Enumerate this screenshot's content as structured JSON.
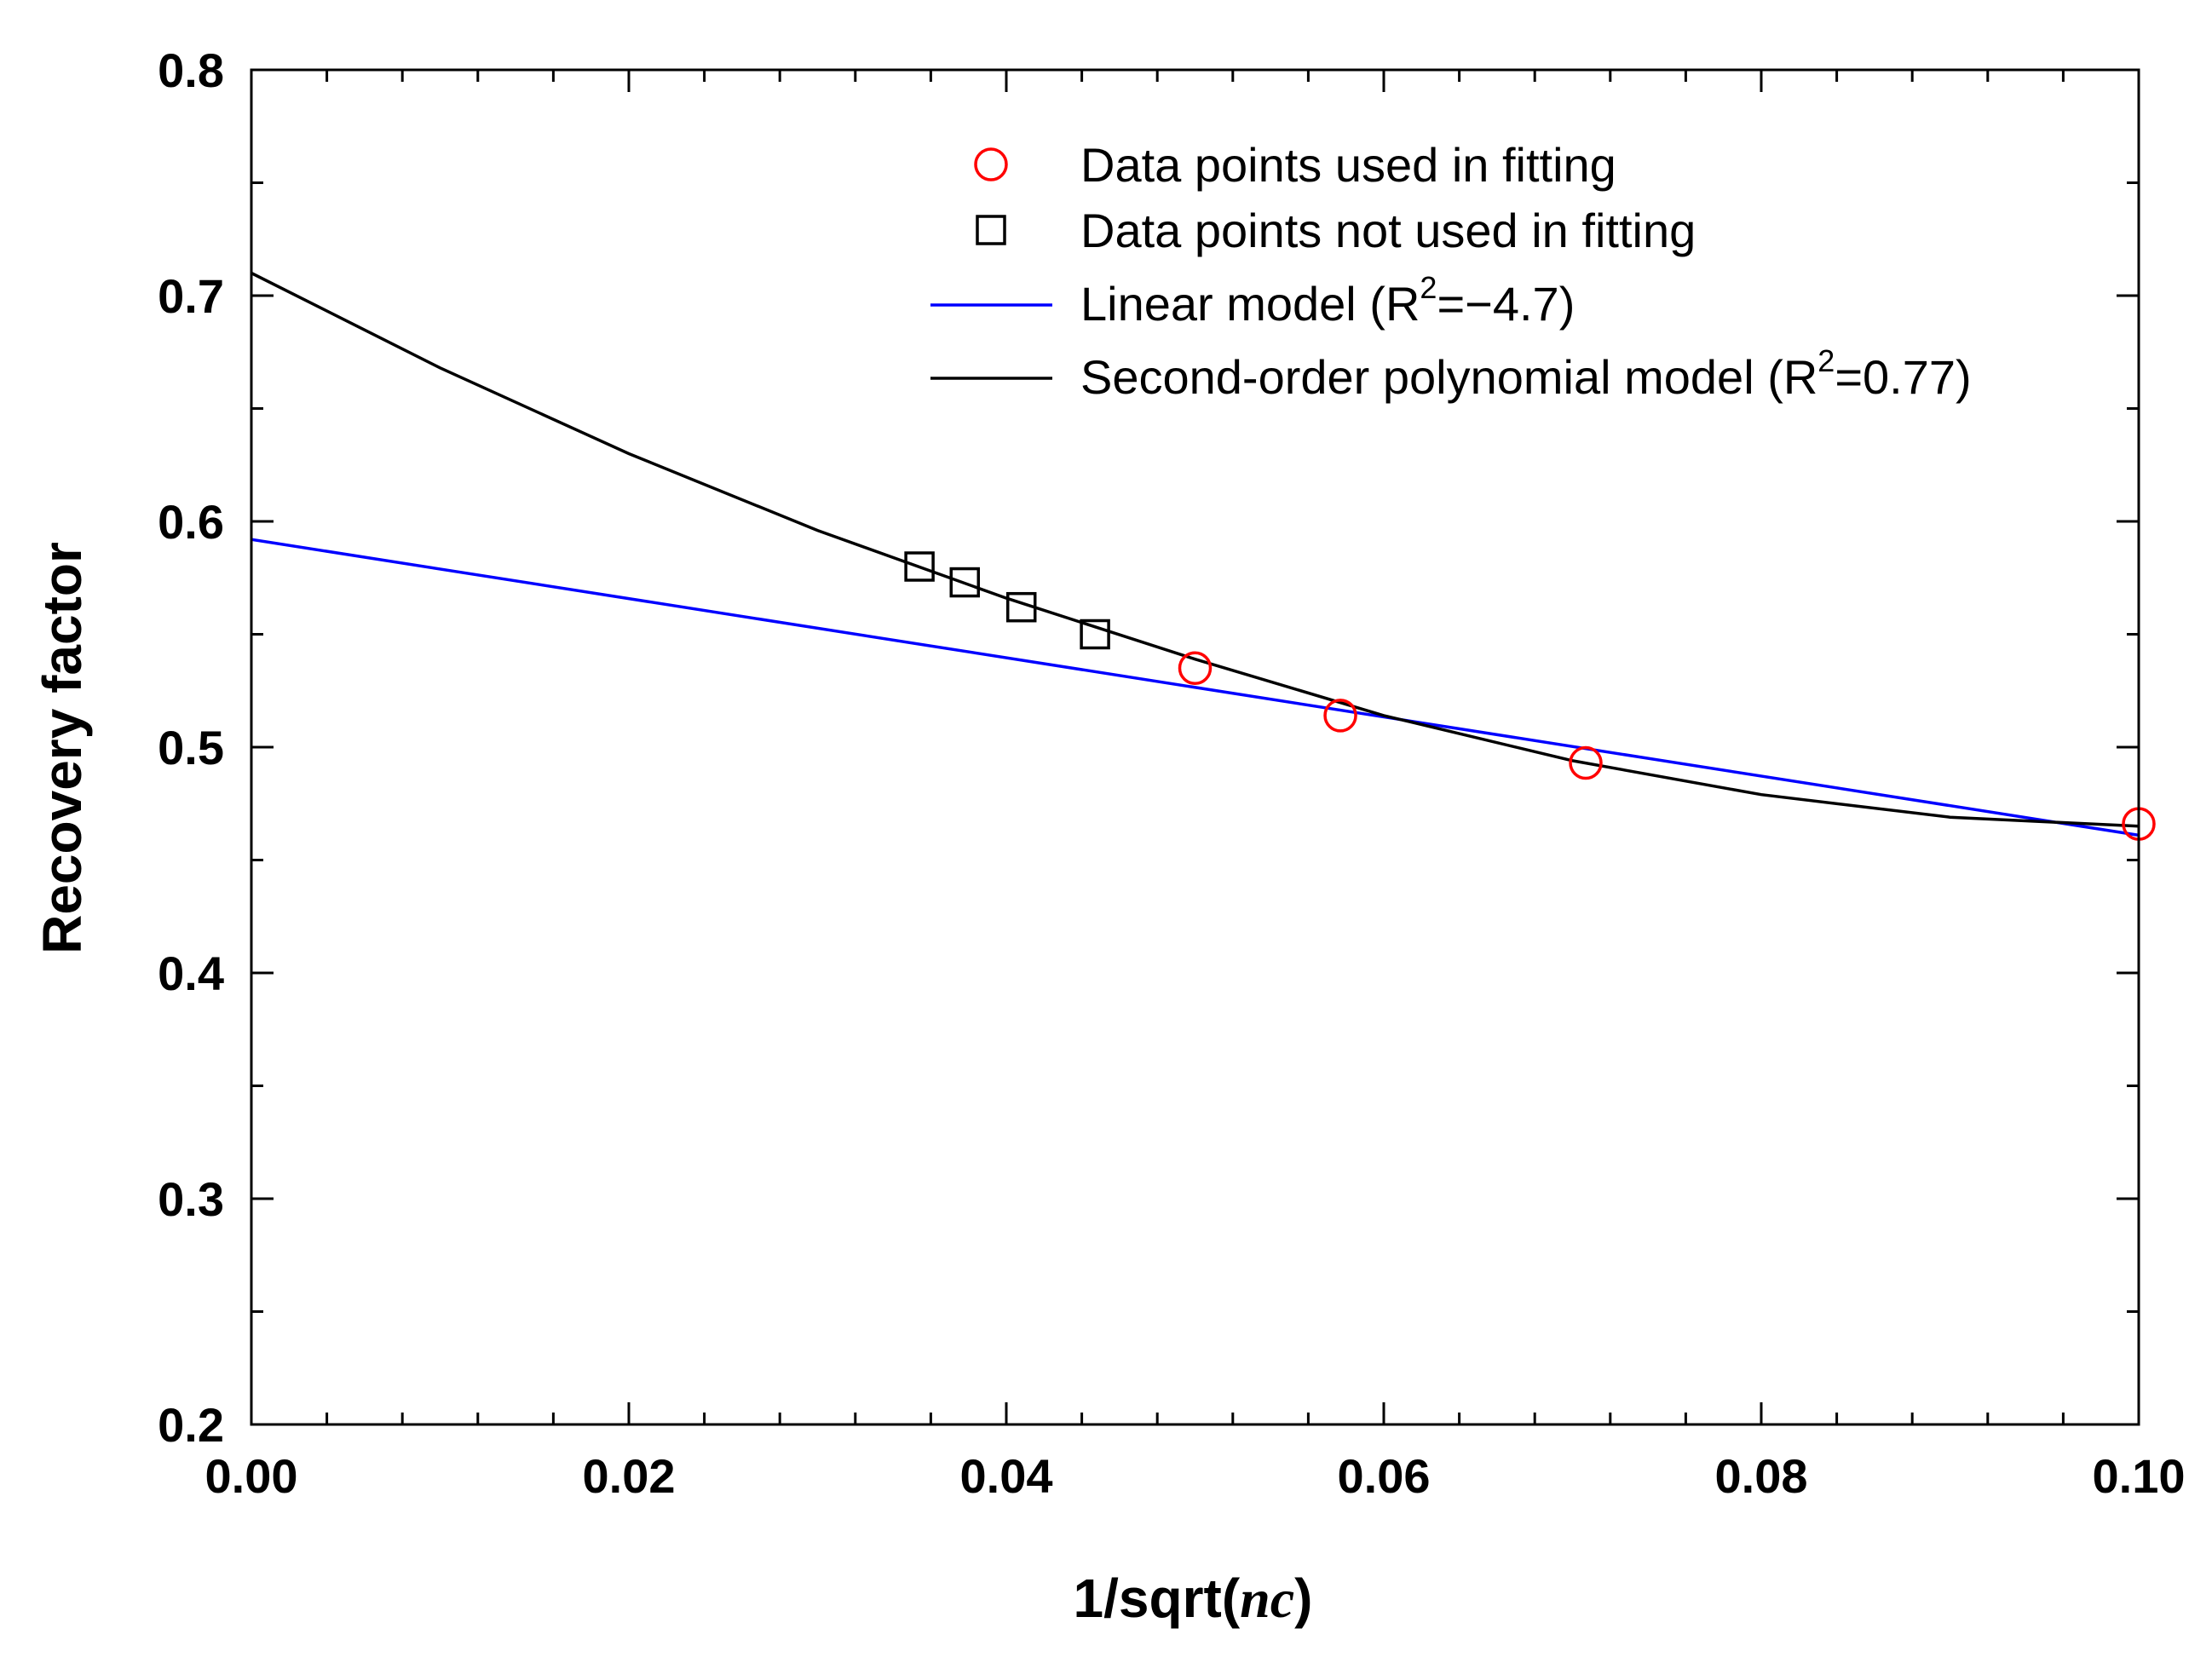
{
  "chart_data": {
    "type": "scatter",
    "title": "",
    "xlabel": {
      "prefix": "1/sqrt(",
      "italic": "nc",
      "suffix": ")"
    },
    "ylabel": "Recovery factor",
    "xlim": [
      0.0,
      0.1
    ],
    "ylim": [
      0.2,
      0.8
    ],
    "x_ticks": [
      0.0,
      0.02,
      0.04,
      0.06,
      0.08,
      0.1
    ],
    "x_tick_labels": [
      "0.00",
      "0.02",
      "0.04",
      "0.06",
      "0.08",
      "0.10"
    ],
    "y_ticks": [
      0.2,
      0.3,
      0.4,
      0.5,
      0.6,
      0.7,
      0.8
    ],
    "y_tick_labels": [
      "0.2",
      "0.3",
      "0.4",
      "0.5",
      "0.6",
      "0.7",
      "0.8"
    ],
    "grid": false,
    "legend_position": "top-right",
    "series": [
      {
        "name": "Data points used in fitting",
        "kind": "points",
        "marker": "circle",
        "color": "#ff0000",
        "x": [
          0.05,
          0.0577,
          0.0707,
          0.1
        ],
        "y": [
          0.535,
          0.514,
          0.493,
          0.466
        ]
      },
      {
        "name": "Data points not used in fitting",
        "kind": "points",
        "marker": "square",
        "color": "#000000",
        "x": [
          0.0354,
          0.0378,
          0.0408,
          0.0447
        ],
        "y": [
          0.58,
          0.573,
          0.562,
          0.55
        ]
      },
      {
        "name": "Linear model",
        "legend_label": {
          "prefix": "Linear model (R",
          "sup": "2",
          "suffix": "=−4.7)"
        },
        "kind": "line",
        "color": "#0000ff",
        "x": [
          0.0,
          0.1
        ],
        "y": [
          0.592,
          0.461
        ]
      },
      {
        "name": "Second-order polynomial model",
        "legend_label": {
          "prefix": "Second-order polynomial model (R",
          "sup": "2",
          "suffix": "=0.77)"
        },
        "kind": "line",
        "color": "#000000",
        "x": [
          0.0,
          0.01,
          0.02,
          0.03,
          0.04,
          0.05,
          0.06,
          0.07,
          0.08,
          0.09,
          0.1
        ],
        "y": [
          0.71,
          0.668,
          0.63,
          0.596,
          0.566,
          0.539,
          0.514,
          0.494,
          0.479,
          0.469,
          0.465
        ]
      }
    ]
  }
}
